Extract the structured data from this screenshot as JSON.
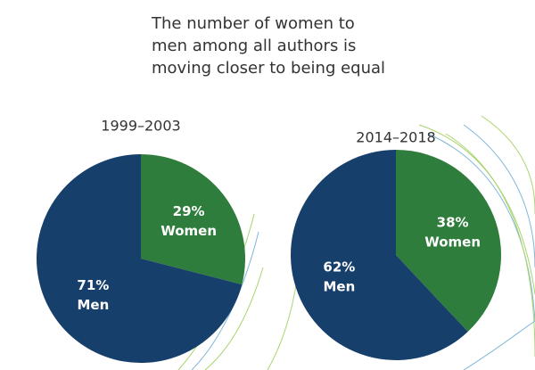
{
  "title": "The number of women to men among all authors is moving closer to being equal",
  "chart_data": [
    {
      "type": "pie",
      "title": "1999–2003",
      "categories": [
        "Women",
        "Men"
      ],
      "values": [
        29,
        71
      ],
      "value_labels": [
        "29%",
        "71%"
      ],
      "colors": [
        "#2f7d3c",
        "#173f6b"
      ]
    },
    {
      "type": "pie",
      "title": "2014–2018",
      "categories": [
        "Women",
        "Men"
      ],
      "values": [
        38,
        62
      ],
      "value_labels": [
        "38%",
        "62%"
      ],
      "colors": [
        "#2f7d3c",
        "#173f6b"
      ]
    }
  ]
}
